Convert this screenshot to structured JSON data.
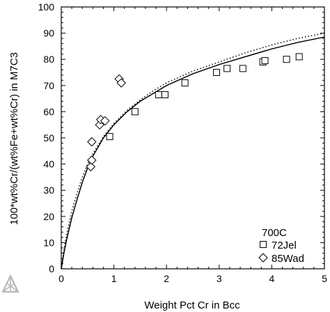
{
  "chart_data": {
    "type": "scatter",
    "xlabel": "Weight Pct Cr in Bcc",
    "ylabel": "100*wt%Cr/(wt%Fe+wt%Cr) in M7C3",
    "xlim": [
      0,
      5
    ],
    "ylim": [
      0,
      100
    ],
    "x_ticks": [
      "0",
      "1",
      "2",
      "3",
      "4",
      "5"
    ],
    "y_ticks": [
      "0",
      "10",
      "20",
      "30",
      "40",
      "50",
      "60",
      "70",
      "80",
      "90",
      "100"
    ],
    "grid": false,
    "legend_position": "bottom-right",
    "legend_title": "700C",
    "series": [
      {
        "name": "72Jel",
        "marker": "square",
        "points": [
          {
            "x": 0.92,
            "y": 50.5
          },
          {
            "x": 1.4,
            "y": 60
          },
          {
            "x": 1.85,
            "y": 66.5
          },
          {
            "x": 1.97,
            "y": 66.5
          },
          {
            "x": 2.35,
            "y": 71
          },
          {
            "x": 2.95,
            "y": 75
          },
          {
            "x": 3.15,
            "y": 76.5
          },
          {
            "x": 3.45,
            "y": 76.5
          },
          {
            "x": 3.83,
            "y": 79
          },
          {
            "x": 3.87,
            "y": 79.5
          },
          {
            "x": 4.28,
            "y": 80
          },
          {
            "x": 4.52,
            "y": 81
          }
        ]
      },
      {
        "name": "85Wad",
        "marker": "diamond",
        "points": [
          {
            "x": 0.56,
            "y": 39
          },
          {
            "x": 0.58,
            "y": 41.5
          },
          {
            "x": 0.58,
            "y": 48.5
          },
          {
            "x": 0.73,
            "y": 55
          },
          {
            "x": 0.75,
            "y": 57
          },
          {
            "x": 0.83,
            "y": 56.5
          },
          {
            "x": 1.1,
            "y": 72.5
          },
          {
            "x": 1.14,
            "y": 71
          }
        ]
      },
      {
        "style": "solid",
        "points": [
          {
            "x": 0,
            "y": 0
          },
          {
            "x": 0.05,
            "y": 6
          },
          {
            "x": 0.1,
            "y": 11
          },
          {
            "x": 0.2,
            "y": 19.5
          },
          {
            "x": 0.3,
            "y": 26.5
          },
          {
            "x": 0.4,
            "y": 33
          },
          {
            "x": 0.5,
            "y": 38.5
          },
          {
            "x": 0.6,
            "y": 43
          },
          {
            "x": 0.8,
            "y": 50
          },
          {
            "x": 1.0,
            "y": 55
          },
          {
            "x": 1.25,
            "y": 60
          },
          {
            "x": 1.5,
            "y": 64
          },
          {
            "x": 1.75,
            "y": 67
          },
          {
            "x": 2.0,
            "y": 70
          },
          {
            "x": 2.5,
            "y": 74.5
          },
          {
            "x": 3.0,
            "y": 78
          },
          {
            "x": 3.5,
            "y": 81
          },
          {
            "x": 4.0,
            "y": 84
          },
          {
            "x": 4.5,
            "y": 86.5
          },
          {
            "x": 5.0,
            "y": 88.5
          }
        ]
      },
      {
        "style": "dotted",
        "points": [
          {
            "x": 0,
            "y": 0
          },
          {
            "x": 0.05,
            "y": 7
          },
          {
            "x": 0.1,
            "y": 13
          },
          {
            "x": 0.2,
            "y": 22
          },
          {
            "x": 0.3,
            "y": 29
          },
          {
            "x": 0.4,
            "y": 35
          },
          {
            "x": 0.5,
            "y": 40
          },
          {
            "x": 0.6,
            "y": 44
          },
          {
            "x": 0.8,
            "y": 50.5
          },
          {
            "x": 1.0,
            "y": 55.5
          },
          {
            "x": 1.25,
            "y": 60.5
          },
          {
            "x": 1.5,
            "y": 64.5
          },
          {
            "x": 1.75,
            "y": 68
          },
          {
            "x": 2.0,
            "y": 71
          },
          {
            "x": 2.5,
            "y": 75.5
          },
          {
            "x": 3.0,
            "y": 79
          },
          {
            "x": 3.5,
            "y": 82.5
          },
          {
            "x": 4.0,
            "y": 85.5
          },
          {
            "x": 4.5,
            "y": 88
          },
          {
            "x": 5.0,
            "y": 90
          }
        ]
      }
    ]
  },
  "colors": {
    "ink": "#000000",
    "background": "#ffffff",
    "logo_grey": "#b8b8b8"
  },
  "logo_icon": "thermo-calc-triangle-icon"
}
